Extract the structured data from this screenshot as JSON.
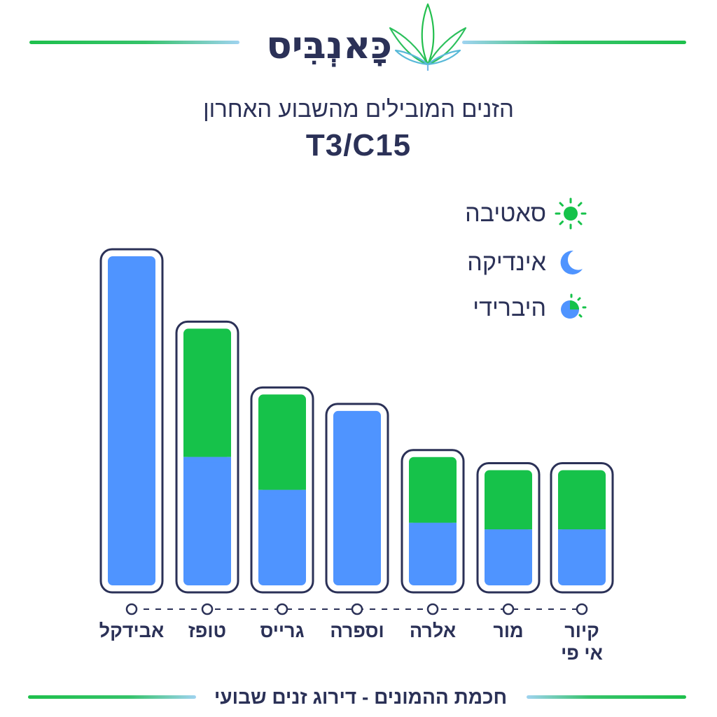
{
  "brand": {
    "name": "כָּאנְבִּיס"
  },
  "header": {
    "subtitle": "הזנים המובילים מהשבוע האחרון",
    "title": "T3/C15"
  },
  "legend": {
    "items": [
      {
        "label": "סאטיבה",
        "icon": "sun-icon",
        "color": "#16c24a"
      },
      {
        "label": "אינדיקה",
        "icon": "moon-icon",
        "color": "#4f94ff"
      },
      {
        "label": "היברידי",
        "icon": "hybrid-icon",
        "color": "#16c24a"
      }
    ]
  },
  "colors": {
    "sativa": "#16c24a",
    "indica": "#4f94ff",
    "outline": "#2b3157",
    "accent_green": "#1ec04c"
  },
  "chart_data": {
    "type": "bar",
    "stacked": true,
    "categories": [
      "אבידקל",
      "טופז",
      "גרייס",
      "וספרה",
      "אלרה",
      "מור",
      "קיור\nאי פי"
    ],
    "series": [
      {
        "name": "אינדיקה",
        "values": [
          100,
          39,
          29,
          53,
          19,
          17,
          17
        ]
      },
      {
        "name": "סאטיבה",
        "values": [
          0,
          39,
          29,
          0,
          20,
          18,
          18
        ]
      }
    ],
    "ylim": [
      0,
      100
    ],
    "grid": false,
    "legend_position": "top-right"
  },
  "footer": {
    "text": "חכמת ההמונים - דירוג זנים שבועי"
  }
}
